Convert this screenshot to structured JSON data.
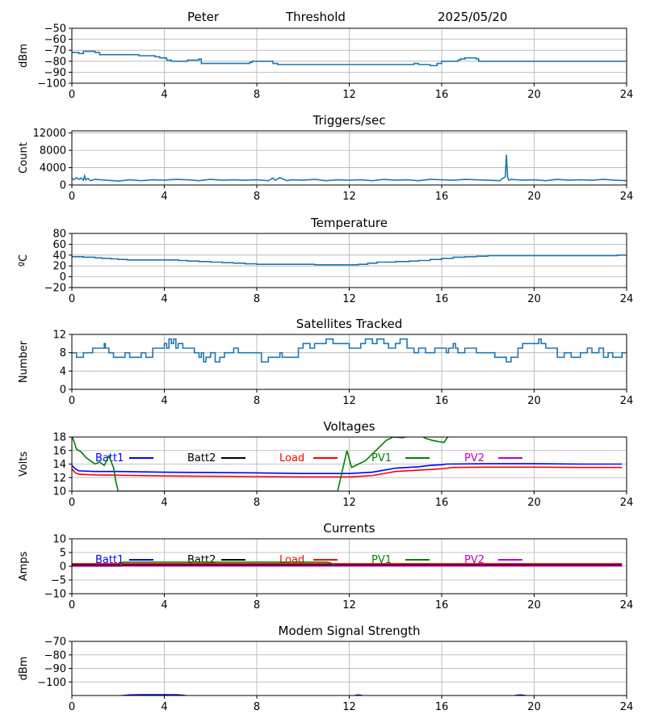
{
  "header": {
    "station": "Peter",
    "mode": "Threshold",
    "date": "2025/05/20"
  },
  "colors": {
    "line": "#1f77b4",
    "grid": "#b0b0b0",
    "batt1": "#0000ff",
    "batt2": "#000000",
    "load": "#ff0000",
    "pv1": "#008000",
    "pv2": "#bf00bf",
    "modem": "#0000cc"
  },
  "chart_data": [
    {
      "id": "signal",
      "type": "line",
      "title": "",
      "ylabel": "dBm",
      "xlim": [
        0,
        24
      ],
      "ylim": [
        -100,
        -50
      ],
      "xticks": [
        0,
        4,
        8,
        12,
        16,
        20,
        24
      ],
      "yticks": [
        -100,
        -90,
        -80,
        -70,
        -60,
        -50
      ],
      "ytick_labels": [
        "−100",
        "−90",
        "−80",
        "−70",
        "−60",
        "−50"
      ],
      "grid": true,
      "series": [
        {
          "color_key": "line",
          "step": true,
          "x": [
            0,
            0.3,
            0.5,
            1.0,
            1.2,
            2.5,
            2.9,
            3.6,
            3.8,
            4.1,
            4.3,
            4.9,
            5.0,
            5.5,
            5.6,
            6.2,
            7.0,
            7.7,
            7.8,
            8.6,
            8.7,
            8.9,
            9.2,
            11.0,
            14.0,
            14.8,
            15.0,
            15.5,
            15.8,
            16.0,
            16.7,
            16.8,
            17.0,
            17.5,
            17.6,
            18.0,
            20.0,
            21.5,
            21.8,
            24
          ],
          "y": [
            -72,
            -73,
            -71,
            -72,
            -74,
            -74,
            -75,
            -76,
            -77,
            -79,
            -80,
            -80,
            -79,
            -78,
            -82,
            -82,
            -82,
            -81,
            -80,
            -80,
            -82,
            -83,
            -83,
            -83,
            -83,
            -82,
            -83,
            -84,
            -82,
            -80,
            -79,
            -78,
            -77,
            -78,
            -80,
            -80,
            -80,
            -80,
            -80,
            -80
          ]
        }
      ]
    },
    {
      "id": "triggers",
      "type": "line",
      "title": "Triggers/sec",
      "ylabel": "Count",
      "xlim": [
        0,
        24
      ],
      "ylim": [
        0,
        12500
      ],
      "xticks": [
        0,
        4,
        8,
        12,
        16,
        20,
        24
      ],
      "yticks": [
        0,
        4000,
        8000,
        12000
      ],
      "grid": true,
      "series": [
        {
          "color_key": "line",
          "step": false,
          "x": [
            0,
            0.1,
            0.2,
            0.3,
            0.4,
            0.5,
            0.55,
            0.6,
            0.7,
            0.8,
            1.0,
            1.5,
            2.0,
            2.5,
            3.0,
            3.5,
            4.0,
            4.5,
            5.0,
            5.5,
            6.0,
            6.5,
            7.0,
            7.5,
            8.0,
            8.5,
            8.7,
            8.8,
            9.0,
            9.3,
            9.5,
            10.0,
            10.5,
            11.0,
            11.5,
            12.0,
            12.5,
            13.0,
            13.5,
            14.0,
            14.5,
            15.0,
            15.5,
            16.0,
            16.5,
            17.0,
            17.5,
            18.0,
            18.5,
            18.75,
            18.8,
            18.85,
            18.9,
            19.0,
            19.5,
            20.0,
            20.5,
            21.0,
            21.5,
            22.0,
            22.5,
            23.0,
            23.5,
            24
          ],
          "y": [
            1500,
            1200,
            1700,
            1300,
            1600,
            1100,
            2100,
            1200,
            1500,
            1000,
            1300,
            1100,
            900,
            1200,
            1000,
            1200,
            1100,
            1300,
            1200,
            1000,
            1300,
            1100,
            1200,
            1100,
            1200,
            1000,
            1600,
            1100,
            1700,
            1000,
            1200,
            1100,
            1300,
            1000,
            1200,
            1100,
            1200,
            1000,
            1300,
            1100,
            1200,
            1000,
            1300,
            1200,
            1100,
            1300,
            1200,
            1100,
            1000,
            1900,
            7000,
            1900,
            1100,
            1300,
            1100,
            1200,
            1000,
            1300,
            1100,
            1200,
            1100,
            1300,
            1100,
            1000
          ]
        }
      ]
    },
    {
      "id": "temperature",
      "type": "line",
      "title": "Temperature",
      "ylabel": "ºC",
      "xlim": [
        0,
        24
      ],
      "ylim": [
        -20,
        80
      ],
      "xticks": [
        0,
        4,
        8,
        12,
        16,
        20,
        24
      ],
      "yticks": [
        -20,
        0,
        20,
        40,
        60,
        80
      ],
      "ytick_labels": [
        "−20",
        "0",
        "20",
        "40",
        "60",
        "80"
      ],
      "grid": true,
      "series": [
        {
          "color_key": "line",
          "step": true,
          "x": [
            0,
            0.5,
            1.0,
            1.3,
            1.7,
            2.0,
            2.4,
            4.0,
            4.6,
            5.0,
            5.5,
            6.0,
            6.5,
            7.0,
            7.5,
            8.0,
            10.5,
            12.0,
            12.4,
            12.8,
            13.2,
            14.0,
            14.6,
            15.0,
            15.5,
            16.0,
            16.5,
            17.0,
            17.5,
            18.0,
            23.6,
            24
          ],
          "y": [
            37,
            36,
            35,
            34,
            33,
            32,
            31,
            31,
            30,
            29,
            28,
            27,
            26,
            25,
            24,
            23,
            22,
            22,
            23,
            25,
            27,
            28,
            29,
            30,
            32,
            34,
            36,
            37,
            38,
            39,
            40,
            39
          ]
        }
      ]
    },
    {
      "id": "satellites",
      "type": "line",
      "title": "Satellites Tracked",
      "ylabel": "Number",
      "xlim": [
        0,
        24
      ],
      "ylim": [
        0,
        12
      ],
      "xticks": [
        0,
        4,
        8,
        12,
        16,
        20,
        24
      ],
      "yticks": [
        0,
        4,
        8,
        12
      ],
      "grid": true,
      "series": [
        {
          "color_key": "line",
          "step": true,
          "x": [
            0,
            0.2,
            0.5,
            0.9,
            1.2,
            1.4,
            1.45,
            1.6,
            1.8,
            2.3,
            2.5,
            3.0,
            3.2,
            3.5,
            4.0,
            4.1,
            4.2,
            4.3,
            4.4,
            4.5,
            4.6,
            4.8,
            5.3,
            5.5,
            5.6,
            5.7,
            5.8,
            6.0,
            6.2,
            6.4,
            6.6,
            7.0,
            7.2,
            7.6,
            8.0,
            8.2,
            8.5,
            9.0,
            9.1,
            9.8,
            10.0,
            10.3,
            10.5,
            11.0,
            11.3,
            11.7,
            12.0,
            12.5,
            12.7,
            13.0,
            13.2,
            13.5,
            13.7,
            14.0,
            14.2,
            14.5,
            14.8,
            15.0,
            15.3,
            15.7,
            16.0,
            16.2,
            16.3,
            16.5,
            16.6,
            16.7,
            17.0,
            17.5,
            18.0,
            18.3,
            18.8,
            19.0,
            19.3,
            19.5,
            19.8,
            20.2,
            20.3,
            20.5,
            21.0,
            21.3,
            21.6,
            22.0,
            22.3,
            22.5,
            22.8,
            23.0,
            23.2,
            23.4,
            23.8,
            24
          ],
          "y": [
            8,
            7,
            8,
            9,
            9,
            10,
            9,
            8,
            7,
            8,
            7,
            8,
            7,
            9,
            10,
            9,
            11,
            10,
            11,
            9,
            10,
            9,
            8,
            7,
            8,
            6,
            7,
            8,
            6,
            7,
            8,
            9,
            8,
            8,
            8,
            6,
            7,
            8,
            7,
            9,
            10,
            9,
            10,
            11,
            10,
            10,
            9,
            10,
            11,
            10,
            11,
            10,
            9,
            10,
            11,
            9,
            8,
            9,
            8,
            9,
            9,
            8,
            9,
            10,
            9,
            8,
            9,
            8,
            8,
            7,
            6,
            7,
            9,
            10,
            10,
            11,
            10,
            9,
            7,
            8,
            7,
            8,
            9,
            8,
            9,
            7,
            8,
            7,
            8,
            8
          ]
        }
      ]
    },
    {
      "id": "voltages",
      "type": "line",
      "title": "Voltages",
      "ylabel": "Volts",
      "xlim": [
        0,
        24
      ],
      "ylim": [
        10,
        18
      ],
      "xticks": [
        0,
        4,
        8,
        12,
        16,
        20,
        24
      ],
      "yticks": [
        10,
        12,
        14,
        16,
        18
      ],
      "grid": true,
      "legend": "inside-top",
      "series": [
        {
          "name": "Batt1",
          "color_key": "batt1",
          "step": false,
          "x": [
            0,
            0.15,
            0.3,
            1,
            2,
            4,
            6,
            8,
            10,
            12,
            13,
            13.5,
            14,
            15,
            15.5,
            16,
            16.2,
            18,
            20,
            22,
            23.8
          ],
          "y": [
            13.8,
            13.3,
            13.0,
            12.9,
            12.9,
            12.8,
            12.75,
            12.7,
            12.6,
            12.6,
            12.8,
            13.1,
            13.4,
            13.6,
            13.8,
            13.9,
            14.0,
            14.05,
            14.05,
            14.0,
            14.0
          ]
        },
        {
          "name": "Batt2",
          "color_key": "batt2",
          "step": false,
          "x": [],
          "y": []
        },
        {
          "name": "Load",
          "color_key": "load",
          "step": false,
          "x": [
            0,
            0.15,
            0.3,
            1,
            2,
            4,
            6,
            8,
            10,
            12,
            13,
            13.5,
            14,
            15,
            15.5,
            16,
            16.5,
            18,
            20,
            22,
            23.8
          ],
          "y": [
            13.3,
            12.7,
            12.5,
            12.4,
            12.35,
            12.25,
            12.2,
            12.15,
            12.1,
            12.1,
            12.3,
            12.6,
            12.9,
            13.1,
            13.2,
            13.3,
            13.5,
            13.55,
            13.55,
            13.5,
            13.5
          ]
        },
        {
          "name": "PV1",
          "color_key": "pv1",
          "step": false,
          "x": [
            0,
            0.2,
            0.4,
            0.6,
            0.8,
            1.0,
            1.2,
            1.4,
            1.6,
            1.8,
            1.9,
            2.0,
            11.5,
            11.7,
            11.9,
            12.1,
            12.4,
            12.7,
            13.0,
            13.3,
            13.6,
            13.9,
            14.3,
            14.7,
            15.0,
            15.3,
            15.6,
            15.9,
            16.1,
            16.3
          ],
          "y": [
            18.3,
            16.2,
            15.8,
            15.0,
            14.5,
            14.0,
            14.3,
            13.8,
            15.2,
            13.5,
            11.5,
            10.0,
            10.0,
            13.0,
            16.0,
            13.5,
            14.0,
            14.5,
            15.5,
            16.5,
            17.5,
            18.0,
            17.9,
            18.2,
            18.4,
            17.8,
            17.5,
            17.3,
            17.2,
            18.2
          ]
        },
        {
          "name": "PV2",
          "color_key": "pv2",
          "step": false,
          "x": [],
          "y": []
        }
      ]
    },
    {
      "id": "currents",
      "type": "line",
      "title": "Currents",
      "ylabel": "Amps",
      "xlim": [
        0,
        24
      ],
      "ylim": [
        -10,
        10
      ],
      "xticks": [
        0,
        4,
        8,
        12,
        16,
        20,
        24
      ],
      "yticks": [
        -10,
        -5,
        0,
        5,
        10
      ],
      "ytick_labels": [
        "−10",
        "−5",
        "0",
        "5",
        "10"
      ],
      "grid": true,
      "legend": "inside-top",
      "series": [
        {
          "name": "Batt1",
          "color_key": "batt1",
          "step": false,
          "x": [
            0,
            23.8
          ],
          "y": [
            0.3,
            0.3
          ]
        },
        {
          "name": "Batt2",
          "color_key": "batt2",
          "step": false,
          "x": [
            0,
            23.8
          ],
          "y": [
            0.5,
            0.5
          ]
        },
        {
          "name": "Load",
          "color_key": "load",
          "step": false,
          "x": [
            0,
            23.8
          ],
          "y": [
            0.9,
            0.9
          ]
        },
        {
          "name": "PV1",
          "color_key": "pv1",
          "step": false,
          "x": [
            0,
            2.1,
            2.2,
            11.0,
            11.2,
            11.4
          ],
          "y": [
            0.0,
            0.0,
            1.5,
            1.5,
            1.2,
            0.0
          ]
        },
        {
          "name": "PV2",
          "color_key": "pv2",
          "step": false,
          "x": [
            0,
            23.8
          ],
          "y": [
            0.1,
            0.1
          ]
        }
      ]
    },
    {
      "id": "modem",
      "type": "line",
      "title": "Modem Signal Strength",
      "ylabel": "dBm",
      "xlim": [
        0,
        24
      ],
      "ylim": [
        -110,
        -70
      ],
      "xticks": [
        0,
        4,
        8,
        12,
        16,
        20,
        24
      ],
      "yticks": [
        -100,
        -90,
        -80,
        -70
      ],
      "ytick_labels": [
        "−100",
        "−90",
        "−80",
        "−70"
      ],
      "grid": true,
      "series": [
        {
          "color_key": "modem",
          "step": false,
          "x": [
            2.1,
            2.5,
            3.0,
            4.0,
            4.6,
            5.0
          ],
          "y": [
            -110.2,
            -109.6,
            -109.4,
            -109.4,
            -109.5,
            -110.2
          ]
        },
        {
          "color_key": "modem",
          "step": false,
          "x": [
            12.2,
            12.4,
            12.6
          ],
          "y": [
            -110.2,
            -109.6,
            -110.2
          ]
        },
        {
          "color_key": "modem",
          "step": false,
          "x": [
            19.1,
            19.4,
            19.7
          ],
          "y": [
            -110.2,
            -109.6,
            -110.2
          ]
        }
      ]
    }
  ]
}
